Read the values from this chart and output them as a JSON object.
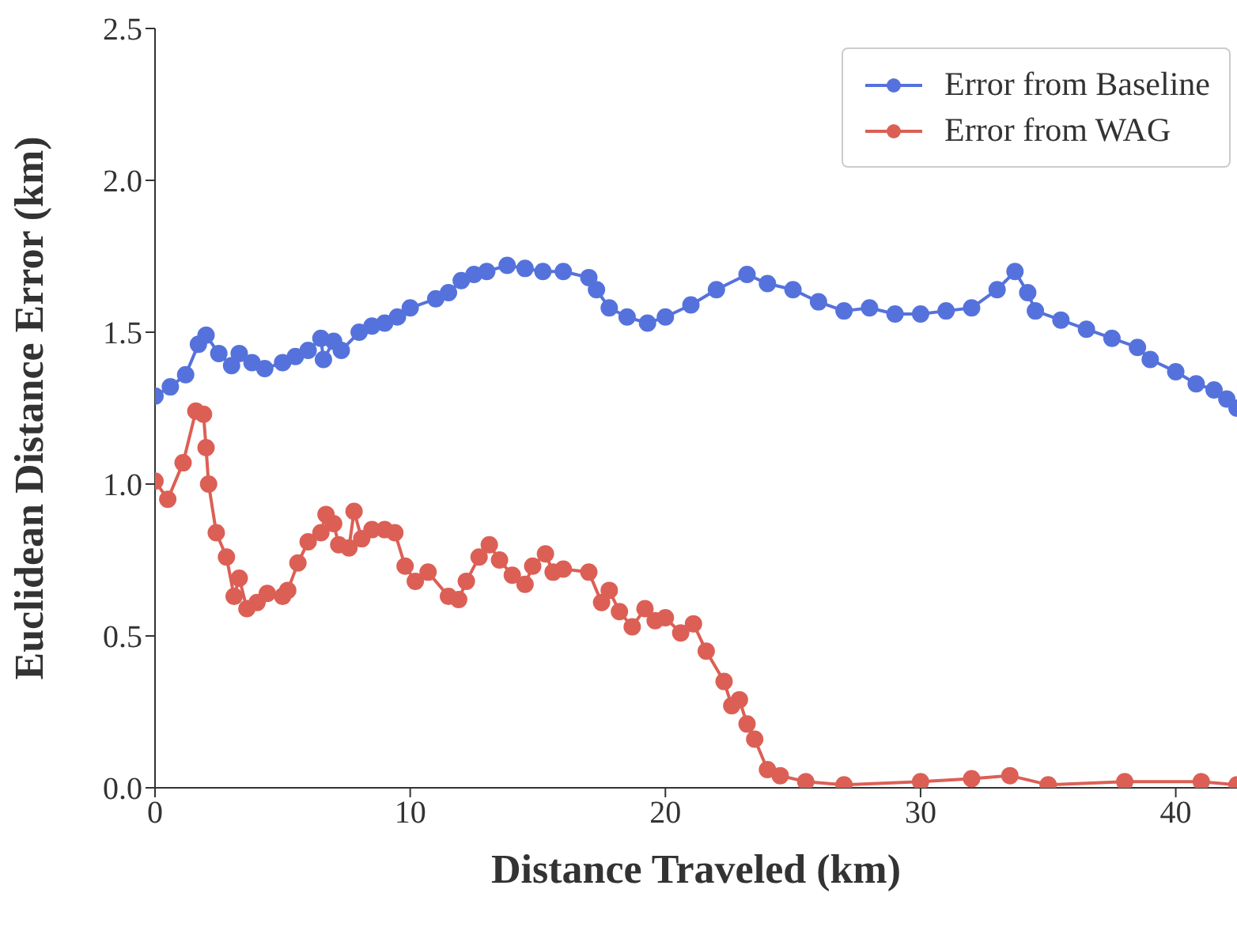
{
  "chart_data": {
    "type": "line",
    "xlabel": "Distance Traveled (km)",
    "ylabel": "Euclidean Distance Error (km)",
    "xlim": [
      0,
      42.4
    ],
    "xticks": [
      0,
      10,
      20,
      30,
      40
    ],
    "ylim": [
      0,
      2.5
    ],
    "yticks": [
      {
        "value": 0,
        "label": "0.0"
      },
      {
        "value": 0.5,
        "label": "0.5"
      },
      {
        "value": 1,
        "label": "1.0"
      },
      {
        "value": 1.5,
        "label": "1.5"
      },
      {
        "value": 2,
        "label": "2.0"
      },
      {
        "value": 2.5,
        "label": "2.5"
      }
    ],
    "grid": false,
    "legend": "top right",
    "marker": "circle",
    "line_style": "solid",
    "series": [
      {
        "name": "Error from Baseline",
        "color": "#5572dc",
        "x": [
          0,
          0.6,
          1.2,
          1.7,
          2.0,
          2.5,
          3.0,
          3.3,
          3.8,
          4.3,
          5.0,
          5.5,
          6.0,
          6.5,
          6.6,
          7.0,
          7.3,
          8,
          8.5,
          9,
          9.5,
          10,
          11,
          11.5,
          12,
          12.5,
          13,
          13.8,
          14.5,
          15.2,
          16,
          17,
          17.3,
          17.8,
          18.5,
          19.3,
          20,
          21,
          22,
          23.2,
          24,
          25,
          26,
          27,
          28,
          29,
          30,
          31,
          32,
          33,
          33.7,
          34.2,
          34.5,
          35.5,
          36.5,
          37.5,
          38.5,
          39,
          40,
          40.8,
          41.5,
          42,
          42.4
        ],
        "values": [
          1.29,
          1.32,
          1.36,
          1.46,
          1.49,
          1.43,
          1.39,
          1.43,
          1.4,
          1.38,
          1.4,
          1.42,
          1.44,
          1.48,
          1.41,
          1.47,
          1.44,
          1.5,
          1.52,
          1.53,
          1.55,
          1.58,
          1.61,
          1.63,
          1.67,
          1.69,
          1.7,
          1.72,
          1.71,
          1.7,
          1.7,
          1.68,
          1.64,
          1.58,
          1.55,
          1.53,
          1.55,
          1.59,
          1.64,
          1.69,
          1.66,
          1.64,
          1.6,
          1.57,
          1.58,
          1.56,
          1.56,
          1.57,
          1.58,
          1.64,
          1.7,
          1.63,
          1.57,
          1.54,
          1.51,
          1.48,
          1.45,
          1.41,
          1.37,
          1.33,
          1.31,
          1.28,
          1.25
        ]
      },
      {
        "name": "Error from WAG",
        "color": "#dc5f55",
        "x": [
          0,
          0.5,
          1.1,
          1.6,
          1.9,
          2.0,
          2.1,
          2.4,
          2.8,
          3.1,
          3.3,
          3.6,
          4,
          4.4,
          5,
          5.2,
          5.6,
          6,
          6.5,
          6.7,
          7,
          7.2,
          7.6,
          7.8,
          8.1,
          8.5,
          9,
          9.4,
          9.8,
          10.2,
          10.7,
          11.5,
          11.9,
          12.2,
          12.7,
          13.1,
          13.5,
          14,
          14.5,
          14.8,
          15.3,
          15.6,
          16,
          17,
          17.5,
          17.8,
          18.2,
          18.7,
          19.2,
          19.6,
          20,
          20.6,
          21.1,
          21.6,
          22.3,
          22.6,
          22.9,
          23.2,
          23.5,
          24,
          24.5,
          25.5,
          27,
          30,
          32,
          33.5,
          35,
          38,
          41,
          42.4
        ],
        "values": [
          1.01,
          0.95,
          1.07,
          1.24,
          1.23,
          1.12,
          1.0,
          0.84,
          0.76,
          0.63,
          0.69,
          0.59,
          0.61,
          0.64,
          0.63,
          0.65,
          0.74,
          0.81,
          0.84,
          0.9,
          0.87,
          0.8,
          0.79,
          0.91,
          0.82,
          0.85,
          0.85,
          0.84,
          0.73,
          0.68,
          0.71,
          0.63,
          0.62,
          0.68,
          0.76,
          0.8,
          0.75,
          0.7,
          0.67,
          0.73,
          0.77,
          0.71,
          0.72,
          0.71,
          0.61,
          0.65,
          0.58,
          0.53,
          0.59,
          0.55,
          0.56,
          0.51,
          0.54,
          0.45,
          0.35,
          0.27,
          0.29,
          0.21,
          0.16,
          0.06,
          0.04,
          0.02,
          0.01,
          0.02,
          0.03,
          0.04,
          0.01,
          0.02,
          0.02,
          0.01
        ]
      }
    ]
  }
}
